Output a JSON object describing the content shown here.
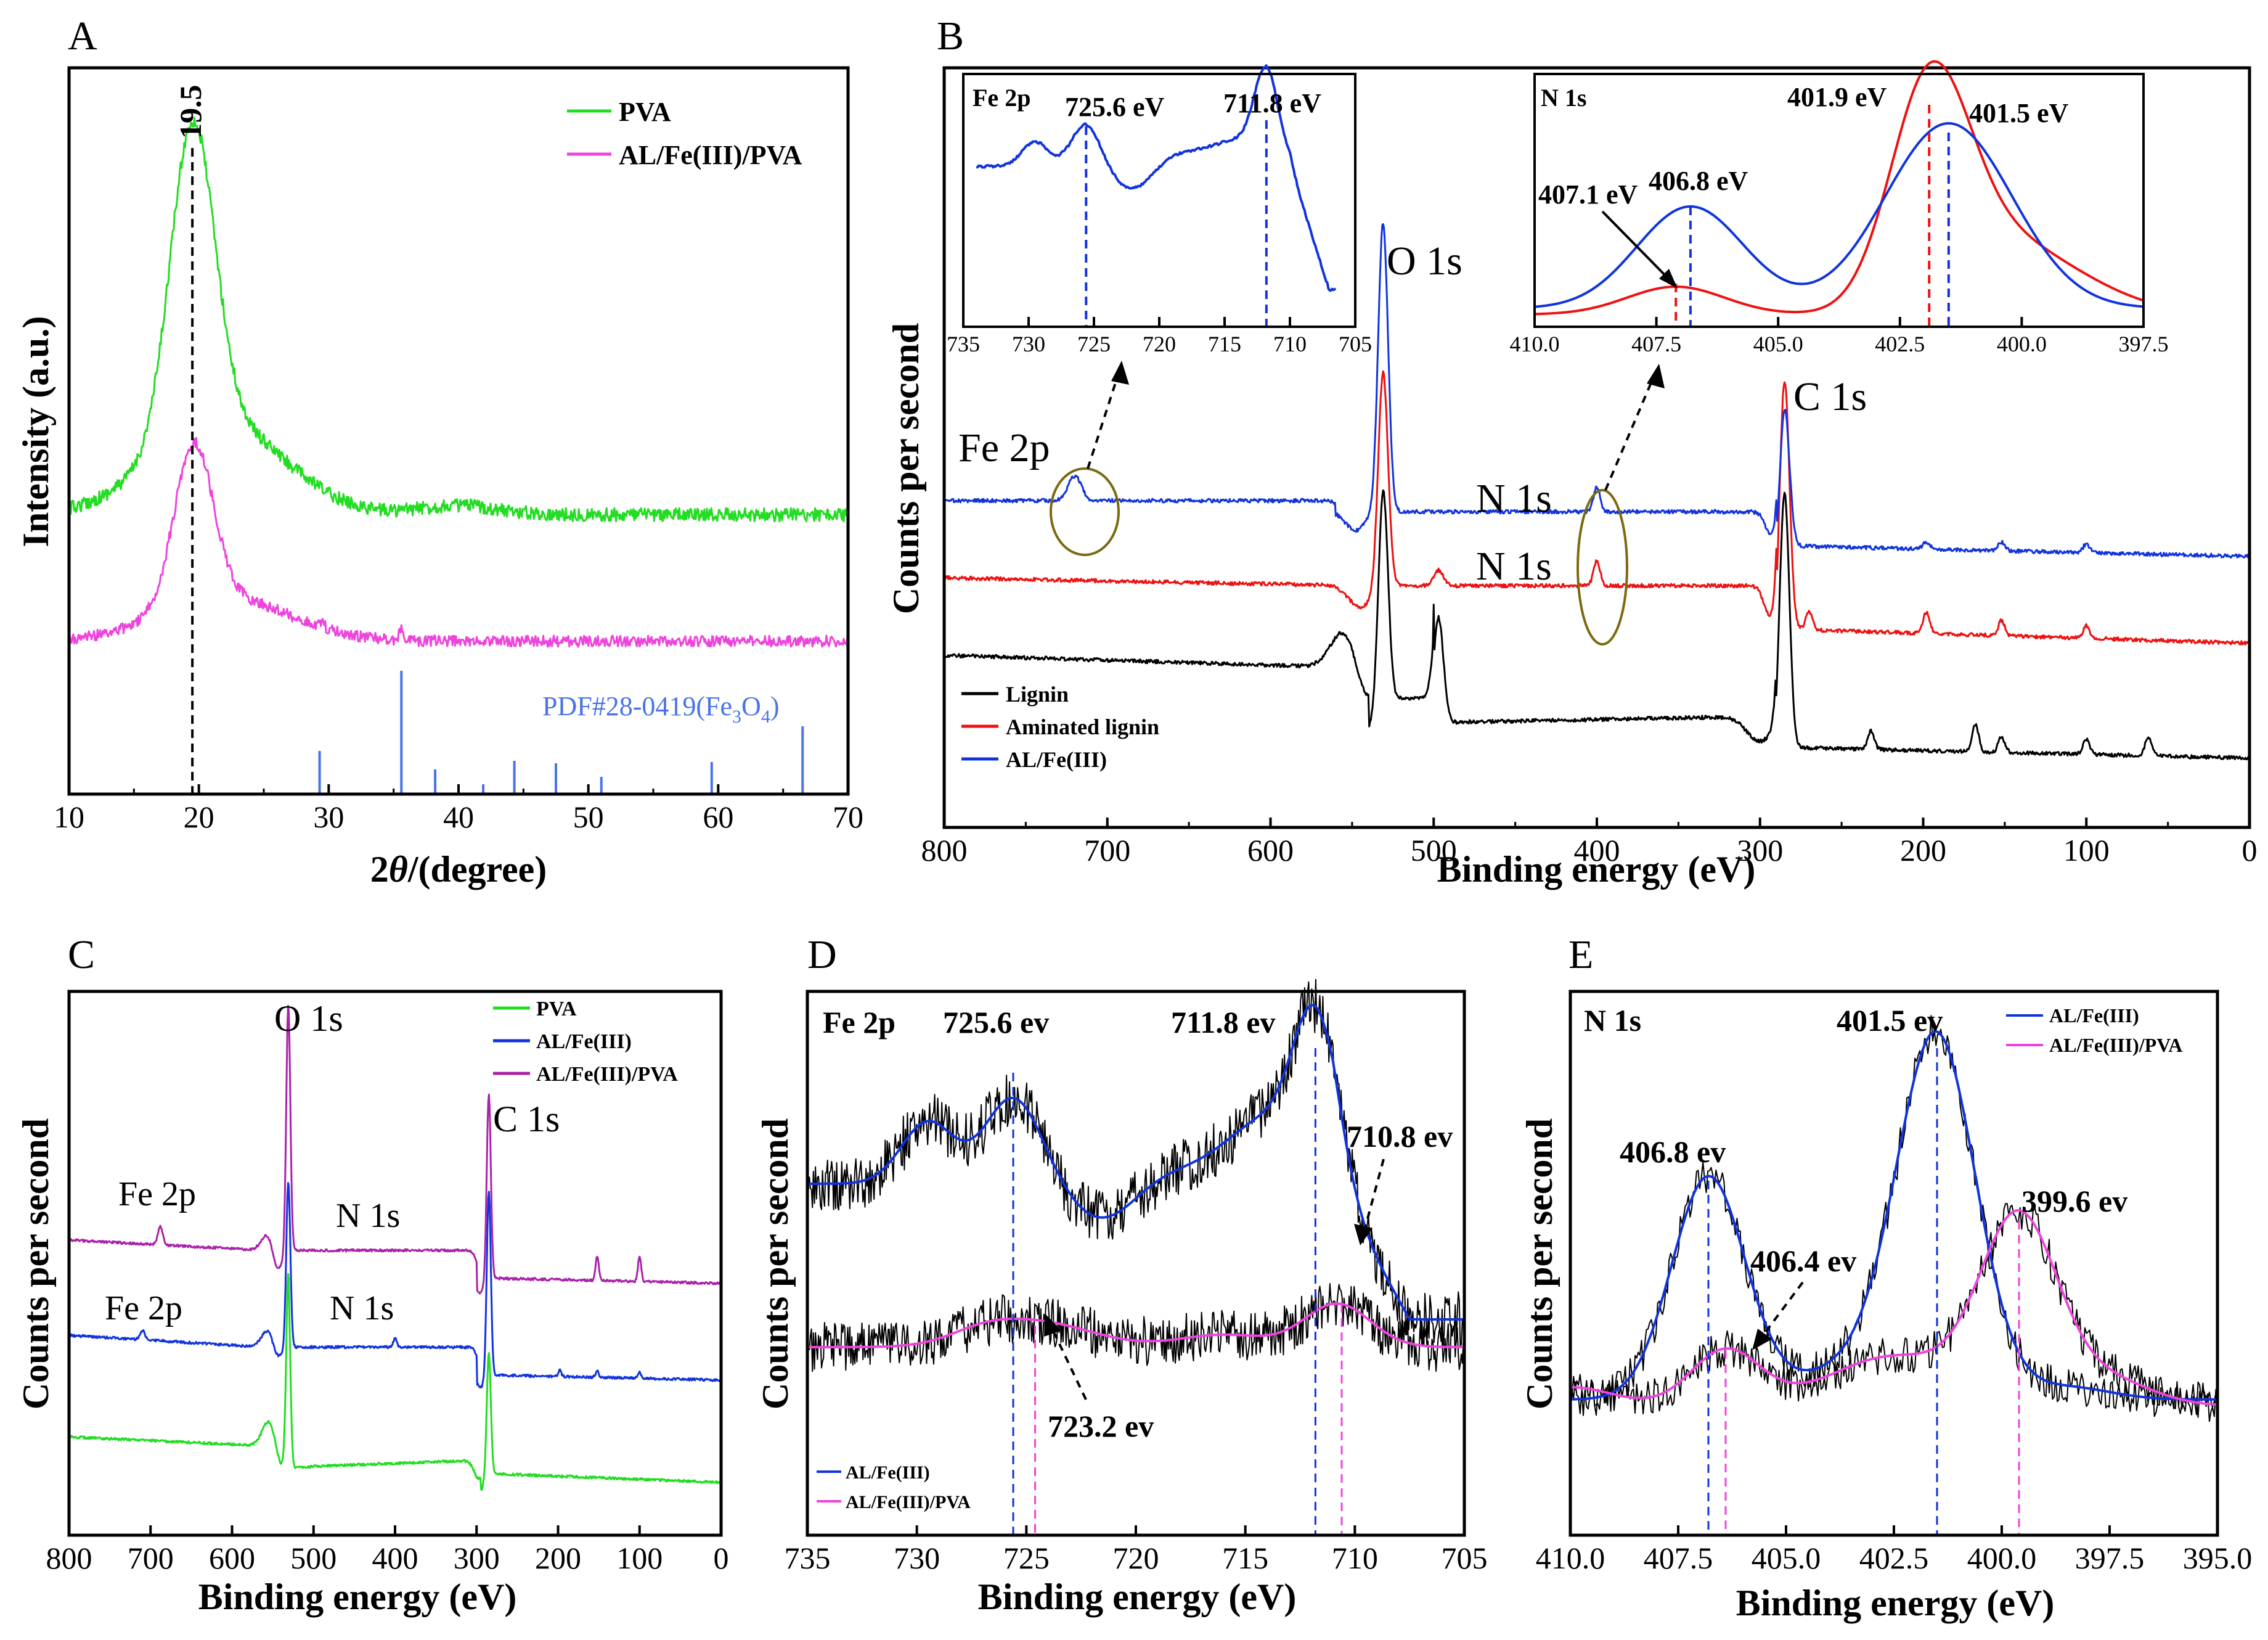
{
  "chart_data": [
    {
      "panel": "A",
      "type": "line",
      "xlabel_main": "2",
      "xlabel_theta": "θ",
      "xlabel_rest": "/(degree)",
      "ylabel": "Intensity (a.u.)",
      "xlim": [
        10,
        70
      ],
      "x_ticks": [
        "10",
        "20",
        "30",
        "40",
        "50",
        "60",
        "70"
      ],
      "annotation_peak": "19.5",
      "pdf_label_prefix": "PDF#28-0419(Fe",
      "pdf_sub1": "3",
      "pdf_mid": "O",
      "pdf_sub2": "4",
      "pdf_suffix": ")",
      "series": [
        {
          "name": "PVA",
          "color": "#22dd22",
          "peak_x": 19.5
        },
        {
          "name": "AL/Fe(III)/PVA",
          "color": "#ee44dd",
          "peak_x": 19.5
        }
      ],
      "reference_lines": [
        {
          "x": 29.3,
          "rel": 0.35
        },
        {
          "x": 35.6,
          "rel": 1.0
        },
        {
          "x": 38.2,
          "rel": 0.2
        },
        {
          "x": 41.9,
          "rel": 0.08
        },
        {
          "x": 44.3,
          "rel": 0.27
        },
        {
          "x": 47.5,
          "rel": 0.25
        },
        {
          "x": 51.0,
          "rel": 0.14
        },
        {
          "x": 59.5,
          "rel": 0.26
        },
        {
          "x": 66.5,
          "rel": 0.55
        }
      ],
      "reference_color": "#4a73e8"
    },
    {
      "panel": "B",
      "type": "line",
      "xlabel": "Binding energy (eV)",
      "ylabel": "Counts per second",
      "xlim": [
        800,
        0
      ],
      "x_ticks": [
        "800",
        "700",
        "600",
        "500",
        "400",
        "300",
        "200",
        "100",
        "0"
      ],
      "peak_labels": {
        "o1s": "O 1s",
        "c1s": "C 1s",
        "n1s_a": "N 1s",
        "n1s_b": "N 1s",
        "fe2p": "Fe 2p"
      },
      "series": [
        {
          "name": "Lignin",
          "color": "#000000"
        },
        {
          "name": "Aminated lignin",
          "color": "#ee1111"
        },
        {
          "name": "AL/Fe(III)",
          "color": "#1133dd"
        }
      ],
      "inset_fe": {
        "title": "Fe 2p",
        "xlim": [
          735,
          705
        ],
        "x_ticks": [
          "735",
          "730",
          "725",
          "720",
          "715",
          "710",
          "705"
        ],
        "peaks": [
          {
            "x": 725.6,
            "label": "725.6 eV"
          },
          {
            "x": 711.8,
            "label": "711.8 eV"
          }
        ]
      },
      "inset_n": {
        "title": "N 1s",
        "xlim": [
          410.0,
          397.5
        ],
        "x_ticks": [
          "410.0",
          "407.5",
          "405.0",
          "402.5",
          "400.0",
          "397.5"
        ],
        "peaks": [
          {
            "x": 401.9,
            "label": "401.9 eV",
            "series": "Aminated lignin"
          },
          {
            "x": 401.5,
            "label": "401.5 eV",
            "series": "AL/Fe(III)"
          },
          {
            "x": 407.1,
            "label": "407.1 eV",
            "series": "Aminated lignin"
          },
          {
            "x": 406.8,
            "label": "406.8 eV",
            "series": "AL/Fe(III)"
          }
        ]
      }
    },
    {
      "panel": "C",
      "type": "line",
      "xlabel": "Binding energy (eV)",
      "ylabel": "Counts per second",
      "xlim": [
        800,
        0
      ],
      "x_ticks": [
        "800",
        "700",
        "600",
        "500",
        "400",
        "300",
        "200",
        "100",
        "0"
      ],
      "peak_labels": {
        "o1s": "O 1s",
        "c1s": "C 1s",
        "n1s_a": "N 1s",
        "n1s_b": "N 1s",
        "fe2p_a": "Fe 2p",
        "fe2p_b": "Fe 2p"
      },
      "series": [
        {
          "name": "PVA",
          "color": "#22dd22"
        },
        {
          "name": "AL/Fe(III)",
          "color": "#1133dd"
        },
        {
          "name": "AL/Fe(III)/PVA",
          "color": "#aa22aa"
        }
      ]
    },
    {
      "panel": "D",
      "type": "line",
      "title": "Fe 2p",
      "xlabel": "Binding energy (eV)",
      "ylabel": "Counts per second",
      "xlim": [
        735,
        705
      ],
      "x_ticks": [
        "735",
        "730",
        "725",
        "720",
        "715",
        "710",
        "705"
      ],
      "series": [
        {
          "name": "AL/Fe(III)",
          "color": "#1133dd"
        },
        {
          "name": "AL/Fe(III)/PVA",
          "color": "#ee44dd"
        }
      ],
      "peaks": [
        {
          "x": 725.6,
          "label": "725.6 ev",
          "series": "AL/Fe(III)"
        },
        {
          "x": 711.8,
          "label": "711.8 ev",
          "series": "AL/Fe(III)"
        },
        {
          "x": 710.8,
          "label": "710.8 ev",
          "series": "AL/Fe(III)/PVA"
        },
        {
          "x": 723.2,
          "label": "723.2 ev",
          "series": "AL/Fe(III)/PVA"
        }
      ]
    },
    {
      "panel": "E",
      "type": "line",
      "title": "N 1s",
      "xlabel": "Binding energy (eV)",
      "ylabel": "Counts per second",
      "xlim": [
        410.0,
        395.0
      ],
      "x_ticks": [
        "410.0",
        "407.5",
        "405.0",
        "402.5",
        "400.0",
        "397.5",
        "395.0"
      ],
      "series": [
        {
          "name": "AL/Fe(III)",
          "color": "#1133dd"
        },
        {
          "name": "AL/Fe(III)/PVA",
          "color": "#ee44dd"
        }
      ],
      "peaks": [
        {
          "x": 406.8,
          "label": "406.8 ev",
          "series": "AL/Fe(III)"
        },
        {
          "x": 401.5,
          "label": "401.5 ev",
          "series": "AL/Fe(III)"
        },
        {
          "x": 406.4,
          "label": "406.4 ev",
          "series": "AL/Fe(III)/PVA"
        },
        {
          "x": 399.6,
          "label": "399.6 ev",
          "series": "AL/Fe(III)/PVA"
        }
      ]
    }
  ]
}
